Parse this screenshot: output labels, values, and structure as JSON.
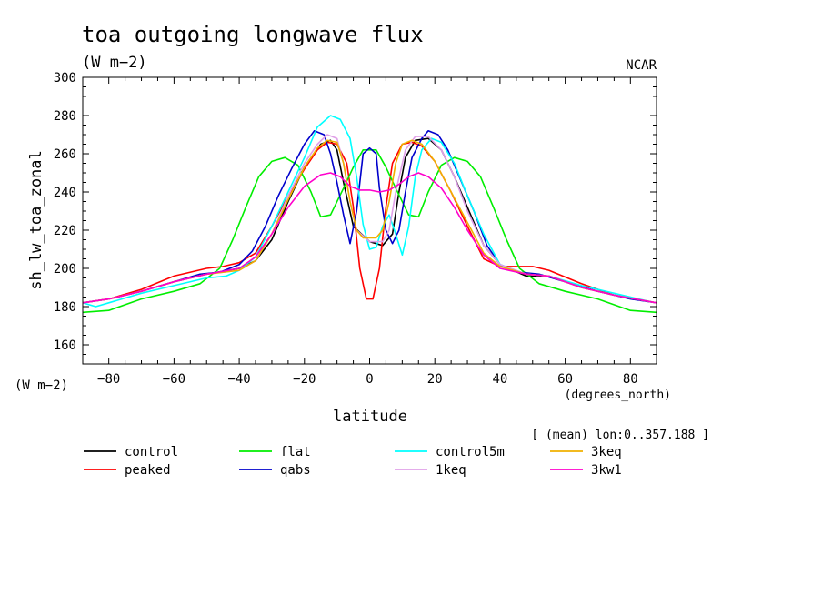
{
  "title": "toa outgoing longwave flux",
  "units": "(W m−2)",
  "institution": "NCAR",
  "ylabel": "sh_lw_toa_zonal",
  "y_units": "(W m−2)",
  "xlabel": "latitude",
  "x_units": "(degrees_north)",
  "subset_note": "[ (mean) lon:0..357.188 ]",
  "x_ticks": [
    "−80",
    "−60",
    "−40",
    "−20",
    "0",
    "20",
    "40",
    "60",
    "80"
  ],
  "y_ticks": [
    "160",
    "180",
    "200",
    "220",
    "240",
    "260",
    "280",
    "300"
  ],
  "chart_data": {
    "type": "line",
    "xlim": [
      -88,
      88
    ],
    "ylim": [
      150,
      300
    ],
    "x_tick_values": [
      -80,
      -60,
      -40,
      -20,
      0,
      20,
      40,
      60,
      80
    ],
    "y_tick_values": [
      160,
      180,
      200,
      220,
      240,
      260,
      280,
      300
    ],
    "grid": false,
    "legend_position": "bottom",
    "series": [
      {
        "name": "control",
        "color": "#000000",
        "points": [
          [
            -88,
            182
          ],
          [
            -80,
            184
          ],
          [
            -70,
            188
          ],
          [
            -60,
            193
          ],
          [
            -50,
            197
          ],
          [
            -40,
            200
          ],
          [
            -35,
            204
          ],
          [
            -30,
            215
          ],
          [
            -25,
            235
          ],
          [
            -20,
            253
          ],
          [
            -15,
            265
          ],
          [
            -12,
            267
          ],
          [
            -10,
            262
          ],
          [
            -8,
            245
          ],
          [
            -5,
            222
          ],
          [
            0,
            214
          ],
          [
            4,
            212
          ],
          [
            7,
            218
          ],
          [
            9,
            240
          ],
          [
            11,
            258
          ],
          [
            14,
            267
          ],
          [
            18,
            268
          ],
          [
            22,
            262
          ],
          [
            26,
            248
          ],
          [
            30,
            232
          ],
          [
            35,
            212
          ],
          [
            40,
            202
          ],
          [
            48,
            196
          ],
          [
            55,
            196
          ],
          [
            65,
            190
          ],
          [
            75,
            186
          ],
          [
            88,
            182
          ]
        ]
      },
      {
        "name": "peaked",
        "color": "#ff0000",
        "points": [
          [
            -88,
            182
          ],
          [
            -80,
            184
          ],
          [
            -70,
            189
          ],
          [
            -60,
            196
          ],
          [
            -50,
            200
          ],
          [
            -45,
            201
          ],
          [
            -40,
            203
          ],
          [
            -35,
            208
          ],
          [
            -30,
            222
          ],
          [
            -25,
            238
          ],
          [
            -20,
            252
          ],
          [
            -16,
            262
          ],
          [
            -13,
            266
          ],
          [
            -10,
            265
          ],
          [
            -7,
            255
          ],
          [
            -5,
            232
          ],
          [
            -3,
            200
          ],
          [
            -1,
            184
          ],
          [
            1,
            184
          ],
          [
            3,
            200
          ],
          [
            5,
            232
          ],
          [
            7,
            255
          ],
          [
            10,
            265
          ],
          [
            13,
            266
          ],
          [
            16,
            264
          ],
          [
            20,
            256
          ],
          [
            25,
            240
          ],
          [
            30,
            222
          ],
          [
            35,
            205
          ],
          [
            40,
            201
          ],
          [
            50,
            201
          ],
          [
            55,
            199
          ],
          [
            65,
            192
          ],
          [
            75,
            186
          ],
          [
            88,
            182
          ]
        ]
      },
      {
        "name": "flat",
        "color": "#00ee00",
        "points": [
          [
            -88,
            177
          ],
          [
            -80,
            178
          ],
          [
            -70,
            184
          ],
          [
            -60,
            188
          ],
          [
            -52,
            192
          ],
          [
            -46,
            200
          ],
          [
            -42,
            215
          ],
          [
            -38,
            232
          ],
          [
            -34,
            248
          ],
          [
            -30,
            256
          ],
          [
            -26,
            258
          ],
          [
            -22,
            254
          ],
          [
            -18,
            240
          ],
          [
            -15,
            227
          ],
          [
            -12,
            228
          ],
          [
            -8,
            242
          ],
          [
            -5,
            253
          ],
          [
            -2,
            262
          ],
          [
            2,
            262
          ],
          [
            5,
            253
          ],
          [
            8,
            242
          ],
          [
            12,
            228
          ],
          [
            15,
            227
          ],
          [
            18,
            240
          ],
          [
            22,
            254
          ],
          [
            26,
            258
          ],
          [
            30,
            256
          ],
          [
            34,
            248
          ],
          [
            38,
            232
          ],
          [
            42,
            215
          ],
          [
            46,
            200
          ],
          [
            52,
            192
          ],
          [
            60,
            188
          ],
          [
            70,
            184
          ],
          [
            80,
            178
          ],
          [
            88,
            177
          ]
        ]
      },
      {
        "name": "qabs",
        "color": "#0000cc",
        "points": [
          [
            -88,
            182
          ],
          [
            -80,
            184
          ],
          [
            -70,
            188
          ],
          [
            -60,
            193
          ],
          [
            -52,
            197
          ],
          [
            -46,
            198
          ],
          [
            -40,
            202
          ],
          [
            -36,
            209
          ],
          [
            -32,
            222
          ],
          [
            -28,
            238
          ],
          [
            -24,
            252
          ],
          [
            -20,
            265
          ],
          [
            -17,
            272
          ],
          [
            -14,
            270
          ],
          [
            -12,
            260
          ],
          [
            -10,
            245
          ],
          [
            -8,
            228
          ],
          [
            -6,
            213
          ],
          [
            -4,
            230
          ],
          [
            -2,
            260
          ],
          [
            0,
            263
          ],
          [
            2,
            260
          ],
          [
            3,
            242
          ],
          [
            5,
            220
          ],
          [
            7,
            213
          ],
          [
            9,
            220
          ],
          [
            11,
            240
          ],
          [
            13,
            258
          ],
          [
            16,
            268
          ],
          [
            18,
            272
          ],
          [
            21,
            270
          ],
          [
            24,
            262
          ],
          [
            28,
            246
          ],
          [
            32,
            230
          ],
          [
            36,
            212
          ],
          [
            40,
            202
          ],
          [
            46,
            198
          ],
          [
            52,
            197
          ],
          [
            60,
            193
          ],
          [
            70,
            188
          ],
          [
            80,
            184
          ],
          [
            88,
            182
          ]
        ]
      },
      {
        "name": "control5m",
        "color": "#00ffff",
        "points": [
          [
            -88,
            182
          ],
          [
            -84,
            180
          ],
          [
            -80,
            182
          ],
          [
            -70,
            187
          ],
          [
            -60,
            191
          ],
          [
            -50,
            195
          ],
          [
            -44,
            196
          ],
          [
            -40,
            199
          ],
          [
            -35,
            206
          ],
          [
            -30,
            222
          ],
          [
            -25,
            240
          ],
          [
            -20,
            258
          ],
          [
            -16,
            274
          ],
          [
            -12,
            280
          ],
          [
            -9,
            278
          ],
          [
            -6,
            268
          ],
          [
            -4,
            248
          ],
          [
            -2,
            223
          ],
          [
            0,
            210
          ],
          [
            2,
            211
          ],
          [
            4,
            222
          ],
          [
            6,
            228
          ],
          [
            8,
            218
          ],
          [
            10,
            207
          ],
          [
            12,
            222
          ],
          [
            14,
            248
          ],
          [
            16,
            262
          ],
          [
            19,
            268
          ],
          [
            22,
            266
          ],
          [
            26,
            255
          ],
          [
            30,
            238
          ],
          [
            35,
            218
          ],
          [
            40,
            202
          ],
          [
            48,
            197
          ],
          [
            55,
            196
          ],
          [
            65,
            191
          ],
          [
            75,
            187
          ],
          [
            85,
            183
          ],
          [
            88,
            182
          ]
        ]
      },
      {
        "name": "1keq",
        "color": "#e0a0e8",
        "points": [
          [
            -88,
            182
          ],
          [
            -80,
            184
          ],
          [
            -70,
            188
          ],
          [
            -60,
            193
          ],
          [
            -50,
            197
          ],
          [
            -40,
            199
          ],
          [
            -35,
            204
          ],
          [
            -30,
            218
          ],
          [
            -25,
            238
          ],
          [
            -20,
            255
          ],
          [
            -16,
            265
          ],
          [
            -13,
            270
          ],
          [
            -10,
            268
          ],
          [
            -8,
            255
          ],
          [
            -6,
            235
          ],
          [
            -4,
            220
          ],
          [
            0,
            214
          ],
          [
            4,
            214
          ],
          [
            6,
            220
          ],
          [
            8,
            240
          ],
          [
            11,
            262
          ],
          [
            14,
            269
          ],
          [
            18,
            269
          ],
          [
            22,
            262
          ],
          [
            26,
            248
          ],
          [
            30,
            230
          ],
          [
            35,
            212
          ],
          [
            40,
            202
          ],
          [
            48,
            197
          ],
          [
            55,
            196
          ],
          [
            65,
            190
          ],
          [
            75,
            186
          ],
          [
            88,
            182
          ]
        ]
      },
      {
        "name": "3keq",
        "color": "#f0b000",
        "points": [
          [
            -88,
            182
          ],
          [
            -80,
            184
          ],
          [
            -70,
            188
          ],
          [
            -60,
            193
          ],
          [
            -50,
            197
          ],
          [
            -40,
            199
          ],
          [
            -35,
            204
          ],
          [
            -30,
            218
          ],
          [
            -25,
            236
          ],
          [
            -20,
            253
          ],
          [
            -16,
            263
          ],
          [
            -13,
            267
          ],
          [
            -10,
            266
          ],
          [
            -8,
            255
          ],
          [
            -6,
            235
          ],
          [
            -4,
            220
          ],
          [
            -2,
            216
          ],
          [
            2,
            216
          ],
          [
            4,
            220
          ],
          [
            6,
            235
          ],
          [
            8,
            255
          ],
          [
            10,
            265
          ],
          [
            13,
            267
          ],
          [
            16,
            265
          ],
          [
            20,
            256
          ],
          [
            25,
            240
          ],
          [
            30,
            224
          ],
          [
            35,
            208
          ],
          [
            40,
            201
          ],
          [
            48,
            197
          ],
          [
            55,
            196
          ],
          [
            65,
            190
          ],
          [
            75,
            186
          ],
          [
            88,
            182
          ]
        ]
      },
      {
        "name": "3kw1",
        "color": "#ff00cc",
        "points": [
          [
            -88,
            182
          ],
          [
            -80,
            184
          ],
          [
            -70,
            188
          ],
          [
            -60,
            193
          ],
          [
            -50,
            197
          ],
          [
            -40,
            200
          ],
          [
            -35,
            206
          ],
          [
            -30,
            218
          ],
          [
            -25,
            232
          ],
          [
            -20,
            243
          ],
          [
            -15,
            249
          ],
          [
            -12,
            250
          ],
          [
            -9,
            248
          ],
          [
            -6,
            243
          ],
          [
            -3,
            241
          ],
          [
            0,
            241
          ],
          [
            3,
            240
          ],
          [
            6,
            241
          ],
          [
            9,
            244
          ],
          [
            12,
            248
          ],
          [
            15,
            250
          ],
          [
            18,
            248
          ],
          [
            22,
            242
          ],
          [
            26,
            232
          ],
          [
            30,
            220
          ],
          [
            35,
            207
          ],
          [
            40,
            200
          ],
          [
            48,
            197
          ],
          [
            55,
            196
          ],
          [
            65,
            190
          ],
          [
            75,
            186
          ],
          [
            88,
            182
          ]
        ]
      }
    ]
  }
}
